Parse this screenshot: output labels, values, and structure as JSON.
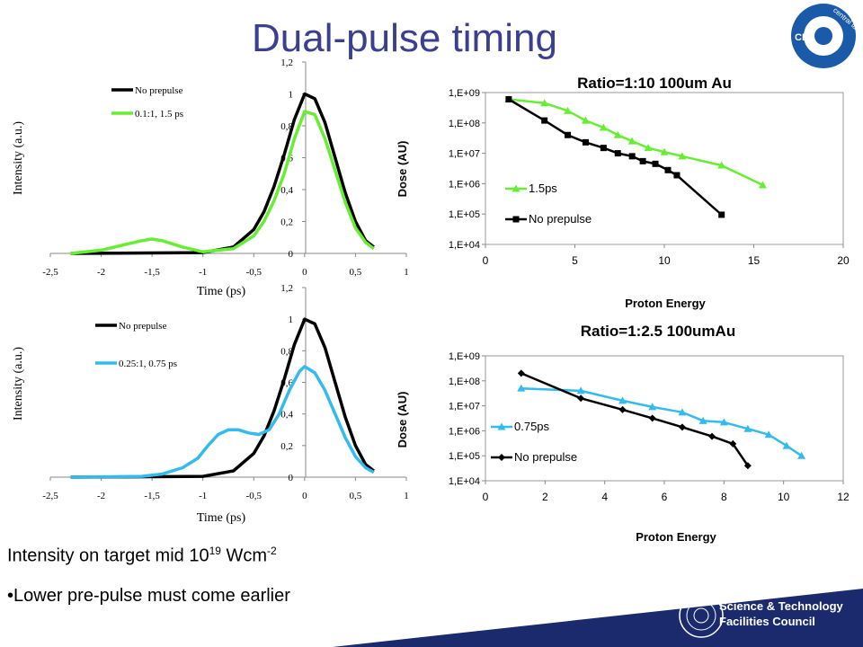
{
  "slide": {
    "title": "Dual-pulse timing",
    "bullet1_main": "Intensity on target mid 10",
    "bullet1_sup": "19",
    "bullet1_unit": " Wcm",
    "bullet1_unit_sup": "-2",
    "bullet2": "•Lower pre-pulse must come earlier",
    "logo_top_text": "central laser facility",
    "logo_top_abbr": "CLF",
    "logo_bottom_line1": "Science & Technology",
    "logo_bottom_line2": "Facilities Council"
  },
  "colors": {
    "title": "#3a3f8f",
    "black_series": "#000000",
    "green_series": "#66ee33",
    "cyan_series": "#33bbee",
    "footer": "#1a2a6c"
  },
  "chart_data": [
    {
      "type": "line",
      "id": "pulse-top",
      "xlabel": "Time (ps)",
      "ylabel": "Intensity (a.u.)",
      "xlim": [
        -2.5,
        1
      ],
      "ylim": [
        0,
        1.2
      ],
      "xticks": [
        "-2,5",
        "-2",
        "-1,5",
        "-1",
        "-0,5",
        "0",
        "0,5",
        "1"
      ],
      "yticks": [
        "0",
        "0,2",
        "0,4",
        "0,6",
        "0,8",
        "1",
        "1,2"
      ],
      "legend": "top-left",
      "series": [
        {
          "name": "No prepulse",
          "color": "#000000",
          "x": [
            -2.3,
            -1.0,
            -0.7,
            -0.5,
            -0.4,
            -0.3,
            -0.2,
            -0.1,
            0,
            0.1,
            0.2,
            0.3,
            0.4,
            0.5,
            0.6,
            0.68
          ],
          "y": [
            0,
            0.005,
            0.04,
            0.15,
            0.26,
            0.42,
            0.62,
            0.84,
            1.0,
            0.97,
            0.82,
            0.6,
            0.38,
            0.2,
            0.08,
            0.04
          ]
        },
        {
          "name": "0.1:1, 1.5 ps",
          "color": "#66ee33",
          "x": [
            -2.3,
            -2.0,
            -1.8,
            -1.6,
            -1.5,
            -1.4,
            -1.2,
            -1.0,
            -0.7,
            -0.5,
            -0.4,
            -0.3,
            -0.2,
            -0.1,
            0,
            0.1,
            0.2,
            0.3,
            0.4,
            0.5,
            0.6,
            0.68
          ],
          "y": [
            0,
            0.02,
            0.05,
            0.08,
            0.09,
            0.08,
            0.04,
            0.01,
            0.03,
            0.11,
            0.2,
            0.33,
            0.5,
            0.72,
            0.89,
            0.87,
            0.72,
            0.52,
            0.32,
            0.16,
            0.07,
            0.03
          ]
        }
      ]
    },
    {
      "type": "line",
      "id": "dose-top",
      "title": "Ratio=1:10 100um Au",
      "xlabel": "Proton Energy",
      "ylabel": "Dose (AU)",
      "xlim": [
        0,
        20
      ],
      "yscale": "log",
      "ylim": [
        10000,
        1000000000
      ],
      "xticks": [
        "0",
        "5",
        "10",
        "15",
        "20"
      ],
      "yticks": [
        "1,E+04",
        "1,E+05",
        "1,E+06",
        "1,E+07",
        "1,E+08",
        "1,E+09"
      ],
      "legend": "bottom-left",
      "series": [
        {
          "name": "1.5ps",
          "color": "#66ee33",
          "marker": "triangle",
          "x": [
            1.3,
            3.3,
            4.6,
            5.6,
            6.6,
            7.4,
            8.2,
            9.1,
            10.0,
            11.0,
            13.2,
            15.5
          ],
          "y": [
            600000000,
            450000000,
            250000000,
            120000000,
            70000000,
            40000000,
            25000000,
            15000000,
            11000000,
            8000000,
            4000000,
            900000
          ]
        },
        {
          "name": "No prepulse",
          "color": "#000000",
          "marker": "square",
          "x": [
            1.3,
            3.3,
            4.6,
            5.6,
            6.6,
            7.4,
            8.2,
            8.8,
            9.5,
            10.2,
            10.7,
            13.2
          ],
          "y": [
            600000000,
            120000000,
            40000000,
            23000000,
            15000000,
            10000000,
            8000000,
            5500000,
            4500000,
            2800000,
            1900000,
            95000
          ]
        }
      ]
    },
    {
      "type": "line",
      "id": "pulse-bottom",
      "xlabel": "Time (ps)",
      "ylabel": "Intensity (a.u.)",
      "xlim": [
        -2.5,
        1
      ],
      "ylim": [
        0,
        1.2
      ],
      "xticks": [
        "-2,5",
        "-2",
        "-1,5",
        "-1",
        "-0,5",
        "0",
        "0,5",
        "1"
      ],
      "yticks": [
        "0",
        "0,2",
        "0,4",
        "0,6",
        "0,8",
        "1",
        "1,2"
      ],
      "legend": "top-left",
      "series": [
        {
          "name": "No prepulse",
          "color": "#000000",
          "x": [
            -2.3,
            -1.0,
            -0.7,
            -0.5,
            -0.4,
            -0.3,
            -0.2,
            -0.1,
            0,
            0.1,
            0.2,
            0.3,
            0.4,
            0.5,
            0.6,
            0.68
          ],
          "y": [
            0,
            0.005,
            0.04,
            0.15,
            0.26,
            0.42,
            0.62,
            0.84,
            1.0,
            0.97,
            0.82,
            0.6,
            0.38,
            0.2,
            0.08,
            0.04
          ]
        },
        {
          "name": "0.25:1, 0.75 ps",
          "color": "#33bbee",
          "x": [
            -2.3,
            -1.6,
            -1.4,
            -1.2,
            -1.05,
            -0.95,
            -0.85,
            -0.75,
            -0.65,
            -0.55,
            -0.45,
            -0.35,
            -0.25,
            -0.15,
            -0.05,
            0,
            0.1,
            0.2,
            0.3,
            0.4,
            0.5,
            0.6,
            0.68
          ],
          "y": [
            0,
            0.005,
            0.02,
            0.06,
            0.12,
            0.2,
            0.27,
            0.3,
            0.3,
            0.28,
            0.27,
            0.3,
            0.4,
            0.55,
            0.67,
            0.7,
            0.66,
            0.55,
            0.4,
            0.25,
            0.13,
            0.06,
            0.03
          ]
        }
      ]
    },
    {
      "type": "line",
      "id": "dose-bottom",
      "title": "Ratio=1:2.5 100umAu",
      "xlabel": "Proton Energy",
      "ylabel": "Dose (AU)",
      "xlim": [
        0,
        12
      ],
      "yscale": "log",
      "ylim": [
        10000,
        1000000000
      ],
      "xticks": [
        "0",
        "2",
        "4",
        "6",
        "8",
        "10",
        "12"
      ],
      "yticks": [
        "1,E+04",
        "1,E+05",
        "1,E+06",
        "1,E+07",
        "1,E+08",
        "1,E+09"
      ],
      "legend": "bottom-left",
      "series": [
        {
          "name": "0.75ps",
          "color": "#33bbee",
          "marker": "triangle",
          "x": [
            1.2,
            3.2,
            4.6,
            5.6,
            6.6,
            7.3,
            8.0,
            8.8,
            9.5,
            10.1,
            10.6
          ],
          "y": [
            50000000,
            40000000,
            16000000,
            9000000,
            5500000,
            2500000,
            2200000,
            1200000,
            700000,
            250000,
            100000
          ]
        },
        {
          "name": "No prepulse",
          "color": "#000000",
          "marker": "diamond",
          "x": [
            1.2,
            3.2,
            4.6,
            5.6,
            6.6,
            7.6,
            8.3,
            8.8
          ],
          "y": [
            200000000,
            20000000,
            7000000,
            3200000,
            1400000,
            600000,
            300000,
            40000
          ]
        }
      ]
    }
  ]
}
